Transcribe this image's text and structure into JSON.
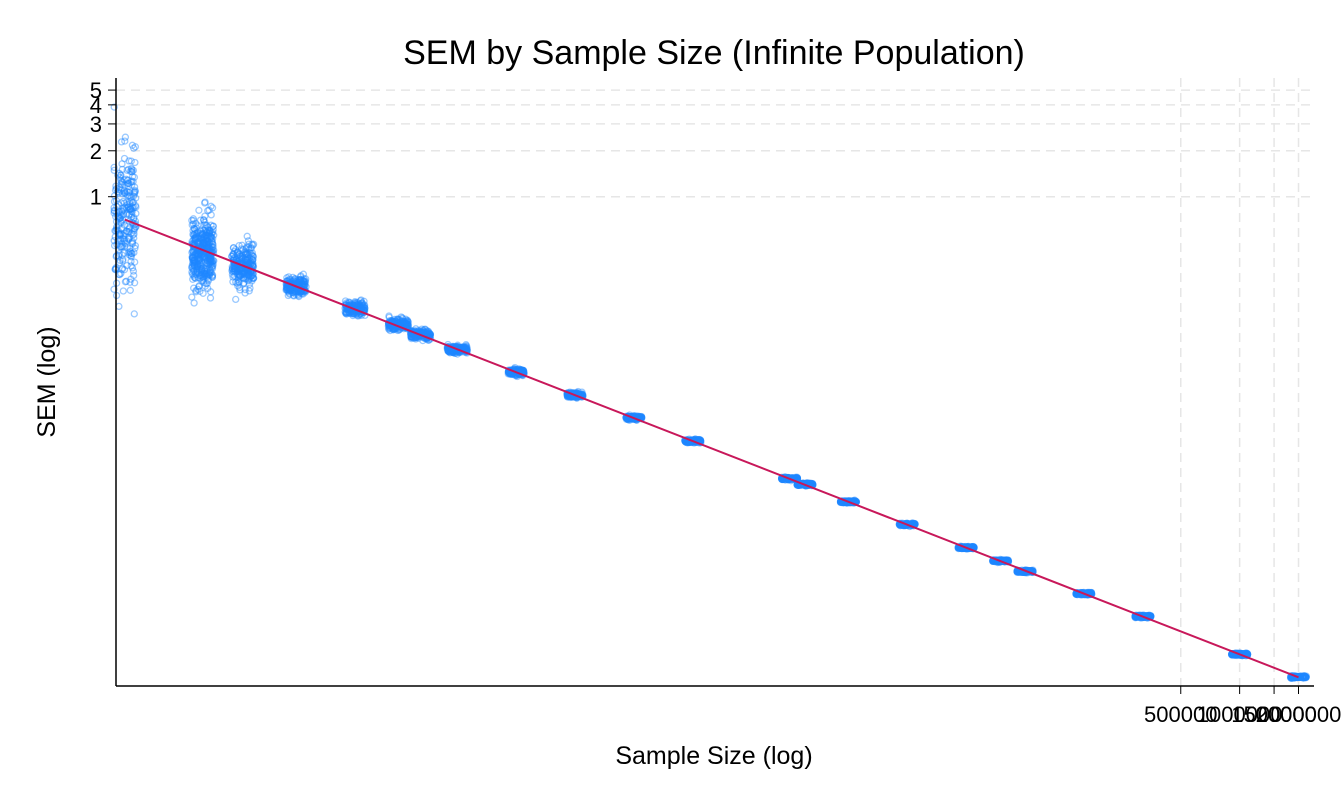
{
  "chart_data": {
    "type": "scatter",
    "title": "SEM by Sample Size (Infinite Population)",
    "xlabel": "Sample Size (log)",
    "ylabel": "SEM (log)",
    "x_scale": "log",
    "y_scale": "log",
    "xlim": [
      1.8,
      2400000
    ],
    "ylim": [
      0.00062,
      6
    ],
    "x_ticks": [
      500000,
      1000000,
      1500000,
      2000000
    ],
    "x_tick_labels": [
      "500000",
      "1000000",
      "1500000",
      "2000000"
    ],
    "y_ticks": [
      1,
      2,
      3,
      4,
      5
    ],
    "y_tick_labels": [
      "1",
      "2",
      "3",
      "4",
      "5"
    ],
    "grid": "dashed at ticks",
    "colors": {
      "points": "#1e88ff",
      "fit_line": "#c8185a",
      "grid": "#e6e6e6"
    },
    "series": [
      {
        "kind": "points",
        "groups": [
          {
            "n": 2,
            "center_sem": 0.7,
            "spread": 0.42,
            "count": 260
          },
          {
            "n": 5,
            "center_sem": 0.44,
            "spread": 0.2,
            "count": 420
          },
          {
            "n": 8,
            "center_sem": 0.35,
            "spread": 0.12,
            "count": 260
          },
          {
            "n": 15,
            "center_sem": 0.26,
            "spread": 0.07,
            "count": 200
          },
          {
            "n": 30,
            "center_sem": 0.185,
            "spread": 0.05,
            "count": 200
          },
          {
            "n": 50,
            "center_sem": 0.145,
            "spread": 0.04,
            "count": 200
          },
          {
            "n": 65,
            "center_sem": 0.125,
            "spread": 0.035,
            "count": 200
          },
          {
            "n": 100,
            "center_sem": 0.1,
            "spread": 0.03,
            "count": 200
          },
          {
            "n": 200,
            "center_sem": 0.071,
            "spread": 0.022,
            "count": 200
          },
          {
            "n": 400,
            "center_sem": 0.05,
            "spread": 0.017,
            "count": 200
          },
          {
            "n": 800,
            "center_sem": 0.0355,
            "spread": 0.013,
            "count": 200
          },
          {
            "n": 1600,
            "center_sem": 0.025,
            "spread": 0.011,
            "count": 200
          },
          {
            "n": 5000,
            "center_sem": 0.0142,
            "spread": 0.009,
            "count": 200
          },
          {
            "n": 6000,
            "center_sem": 0.013,
            "spread": 0.009,
            "count": 200
          },
          {
            "n": 10000,
            "center_sem": 0.01,
            "spread": 0.008,
            "count": 200
          },
          {
            "n": 20000,
            "center_sem": 0.0071,
            "spread": 0.008,
            "count": 200
          },
          {
            "n": 40000,
            "center_sem": 0.005,
            "spread": 0.008,
            "count": 200
          },
          {
            "n": 60000,
            "center_sem": 0.0041,
            "spread": 0.008,
            "count": 200
          },
          {
            "n": 80000,
            "center_sem": 0.0035,
            "spread": 0.008,
            "count": 200
          },
          {
            "n": 160000,
            "center_sem": 0.0025,
            "spread": 0.008,
            "count": 200
          },
          {
            "n": 320000,
            "center_sem": 0.00177,
            "spread": 0.008,
            "count": 200
          },
          {
            "n": 1000000,
            "center_sem": 0.001,
            "spread": 0.008,
            "count": 200
          },
          {
            "n": 2000000,
            "center_sem": 0.00071,
            "spread": 0.008,
            "count": 120
          }
        ]
      },
      {
        "kind": "fit-line",
        "x": [
          2,
          2000000
        ],
        "y": [
          0.707,
          0.000707
        ]
      }
    ]
  }
}
